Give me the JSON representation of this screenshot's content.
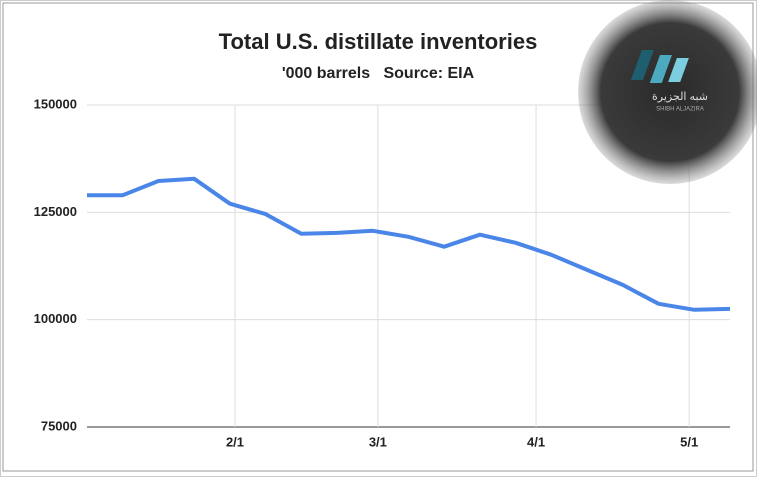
{
  "chart_data": {
    "type": "line",
    "title": "Total U.S. distillate inventories",
    "subtitle": "'000 barrels   Source: EIA",
    "x": [
      3,
      10,
      17,
      24,
      31,
      38,
      45,
      52,
      59,
      66,
      73,
      80,
      87,
      94,
      101,
      108,
      115,
      122,
      129
    ],
    "values": [
      129000,
      129000,
      132300,
      132800,
      127000,
      124600,
      120000,
      120200,
      120700,
      119300,
      117000,
      119800,
      117900,
      115100,
      111600,
      108100,
      103700,
      102300,
      102500
    ],
    "color": "#4a86e8",
    "xlim": [
      3,
      129
    ],
    "xticks": [
      {
        "value": 32,
        "label": "2/1"
      },
      {
        "value": 60,
        "label": "3/1"
      },
      {
        "value": 91,
        "label": "4/1"
      },
      {
        "value": 121,
        "label": "5/1"
      }
    ],
    "ylim": [
      75000,
      150000
    ],
    "yticks": [
      75000,
      100000,
      125000,
      150000
    ],
    "grid": true
  },
  "watermark": {
    "text": "شبه الجزيرة",
    "subtext": "SHIBH ALJAZIRA"
  }
}
